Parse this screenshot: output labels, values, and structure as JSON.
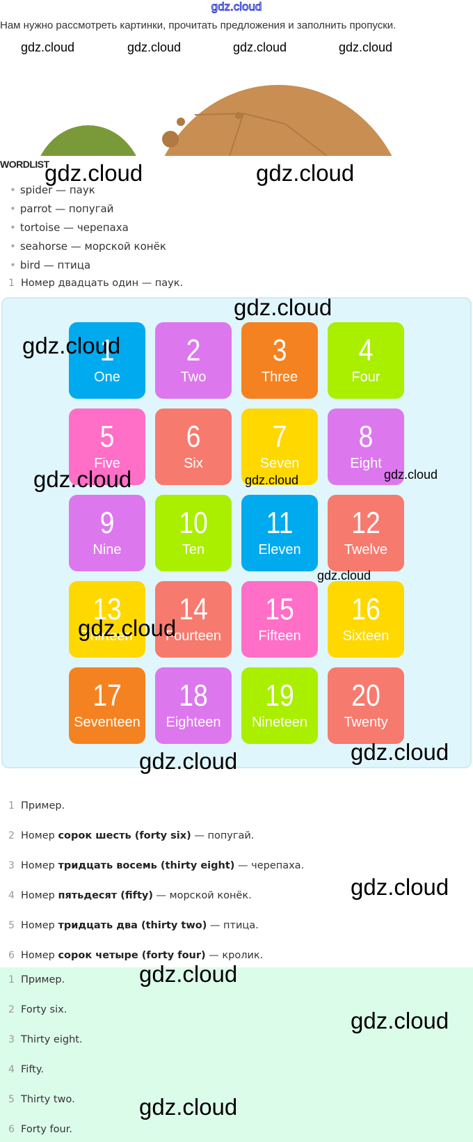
{
  "header_watermark": "gdz.cloud",
  "intro": "Нам нужно рассмотреть картинки, прочитать предложения и заполнить пропуски.",
  "watermark": "gdz.cloud",
  "wordlist": {
    "title": "WORDLIST",
    "items": [
      "spider — паук",
      "parrot — попугай",
      "tortoise — черепаха",
      "seahorse — морской конёк",
      "bird — птица"
    ]
  },
  "first_item": {
    "num": "1",
    "text": "Номер двадцать один — паук."
  },
  "tiles": [
    {
      "n": "1",
      "w": "One",
      "color": "#00aaee"
    },
    {
      "n": "2",
      "w": "Two",
      "color": "#dd77ee"
    },
    {
      "n": "3",
      "w": "Three",
      "color": "#f58220"
    },
    {
      "n": "4",
      "w": "Four",
      "color": "#aaee00"
    },
    {
      "n": "5",
      "w": "Five",
      "color": "#ff6ec7"
    },
    {
      "n": "6",
      "w": "Six",
      "color": "#f77a6e"
    },
    {
      "n": "7",
      "w": "Seven",
      "color": "#ffd800"
    },
    {
      "n": "8",
      "w": "Eight",
      "color": "#dd77ee"
    },
    {
      "n": "9",
      "w": "Nine",
      "color": "#dd77ee"
    },
    {
      "n": "10",
      "w": "Ten",
      "color": "#aaee00"
    },
    {
      "n": "11",
      "w": "Eleven",
      "color": "#00aaee"
    },
    {
      "n": "12",
      "w": "Twelve",
      "color": "#f77a6e"
    },
    {
      "n": "13",
      "w": "Thirteen",
      "color": "#ffd800"
    },
    {
      "n": "14",
      "w": "Fourteen",
      "color": "#f77a6e"
    },
    {
      "n": "15",
      "w": "Fifteen",
      "color": "#ff6ec7"
    },
    {
      "n": "16",
      "w": "Sixteen",
      "color": "#ffd800"
    },
    {
      "n": "17",
      "w": "Seventeen",
      "color": "#f58220"
    },
    {
      "n": "18",
      "w": "Eighteen",
      "color": "#dd77ee"
    },
    {
      "n": "19",
      "w": "Nineteen",
      "color": "#aaee00"
    },
    {
      "n": "20",
      "w": "Twenty",
      "color": "#f77a6e"
    }
  ],
  "answers": [
    {
      "num": "1",
      "pre": "Пример.",
      "bold": "",
      "post": ""
    },
    {
      "num": "2",
      "pre": "Номер ",
      "bold": "сорок шесть (forty six)",
      "post": " — попугай."
    },
    {
      "num": "3",
      "pre": "Номер ",
      "bold": "тридцать восемь (thirty eight)",
      "post": " — черепаха."
    },
    {
      "num": "4",
      "pre": "Номер ",
      "bold": "пятьдесят (fifty)",
      "post": " — морской конёк."
    },
    {
      "num": "5",
      "pre": "Номер ",
      "bold": "тридцать два (thirty two)",
      "post": " — птица."
    },
    {
      "num": "6",
      "pre": "Номер ",
      "bold": "сорок четыре (forty four)",
      "post": " — кролик."
    }
  ],
  "short_answers": [
    {
      "num": "1",
      "text": "Пример."
    },
    {
      "num": "2",
      "text": "Forty six."
    },
    {
      "num": "3",
      "text": "Thirty eight."
    },
    {
      "num": "4",
      "text": "Fifty."
    },
    {
      "num": "5",
      "text": "Thirty two."
    },
    {
      "num": "6",
      "text": "Forty four."
    }
  ]
}
